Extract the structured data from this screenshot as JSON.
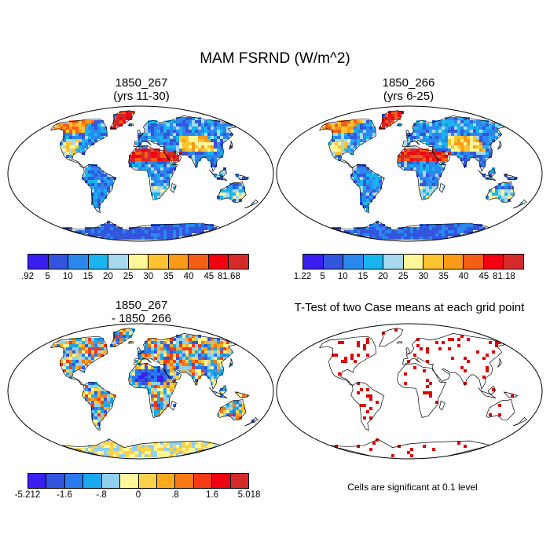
{
  "figure": {
    "title": "MAM FSRND (W/m^2)"
  },
  "panels": [
    {
      "id": "case1",
      "title_line1": "1850_267",
      "title_line2": "(yrs 11-30)",
      "colorbar_labels": [
        ".92",
        "5",
        "10",
        "15",
        "20",
        "25",
        "30",
        "35",
        "40",
        "45",
        "81.68"
      ]
    },
    {
      "id": "case2",
      "title_line1": "1850_266",
      "title_line2": "(yrs 6-25)",
      "colorbar_labels": [
        "1.22",
        "5",
        "10",
        "15",
        "20",
        "25",
        "30",
        "35",
        "40",
        "45",
        "81.18"
      ]
    },
    {
      "id": "diff",
      "title_line1": "1850_267",
      "title_line2": "- 1850_266",
      "colorbar_labels": [
        "-5.212",
        "-1.6",
        "-.8",
        "0",
        ".8",
        "1.6",
        "5.018"
      ]
    },
    {
      "id": "ttest",
      "title_line1": "T-Test of two Case means at each grid point",
      "note": "Cells are significant at 0.1 level"
    }
  ],
  "colors": {
    "abs_scale": [
      "#3a1ff0",
      "#3355dd",
      "#2a88ee",
      "#1ab4ee",
      "#a6d8ee",
      "#fff799",
      "#fdc431",
      "#fb9a16",
      "#f45f16",
      "#f40010",
      "#d42a2a"
    ],
    "diff_scale": [
      "#3a1ff0",
      "#3355dd",
      "#2a7aee",
      "#1aa8ee",
      "#8fd0ee",
      "#fff799",
      "#fdd24a",
      "#fbaa20",
      "#f77a14",
      "#f53a14",
      "#f00010",
      "#d42a2a"
    ],
    "significant": "#e00000",
    "coast": "#000000"
  }
}
